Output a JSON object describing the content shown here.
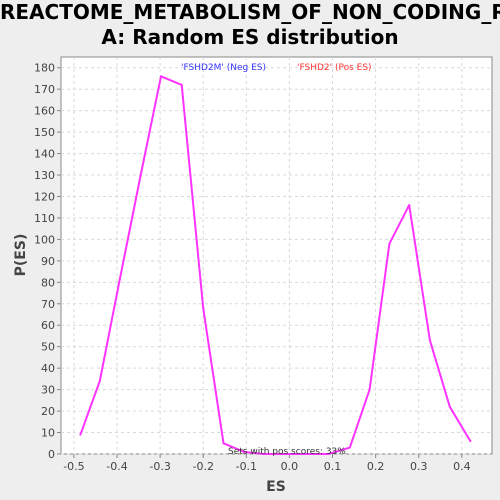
{
  "chart_data": {
    "type": "line",
    "title_lines": [
      "REACTOME_METABOLISM_OF_NON_CODING_RN",
      "A: Random ES distribution"
    ],
    "xlabel": "ES",
    "ylabel": "P(ES)",
    "xlim": [
      -0.53,
      0.47
    ],
    "ylim": [
      0,
      185
    ],
    "x_ticks": [
      -0.5,
      -0.4,
      -0.3,
      -0.2,
      -0.1,
      0.0,
      0.1,
      0.2,
      0.3,
      0.4
    ],
    "x_tick_labels": [
      "-0.5",
      "-0.4",
      "-0.3",
      "-0.2",
      "-0.1",
      "0.0",
      "0.1",
      "0.2",
      "0.3",
      "0.4"
    ],
    "y_ticks": [
      0,
      10,
      20,
      30,
      40,
      50,
      60,
      70,
      80,
      90,
      100,
      110,
      120,
      130,
      140,
      150,
      160,
      170,
      180
    ],
    "y_tick_labels": [
      "0",
      "10",
      "20",
      "30",
      "40",
      "50",
      "60",
      "70",
      "80",
      "90",
      "100",
      "110",
      "120",
      "130",
      "140",
      "150",
      "160",
      "170",
      "180"
    ],
    "grid": true,
    "series": [
      {
        "color": "#ff33ff",
        "x": [
          -0.485,
          -0.44,
          -0.395,
          -0.345,
          -0.298,
          -0.25,
          -0.2,
          -0.153,
          -0.105,
          -0.06,
          -0.01,
          0.04,
          0.09,
          0.14,
          0.186,
          0.232,
          0.278,
          0.326,
          0.372,
          0.42
        ],
        "y": [
          9,
          34,
          80,
          130,
          176,
          172,
          68,
          5,
          1,
          0,
          0,
          0,
          0,
          3,
          30,
          98,
          116,
          53,
          22,
          6
        ]
      }
    ],
    "legend": [
      {
        "text": "'FSHD2M' (Neg ES)",
        "color": "#3333ff"
      },
      {
        "text": "'FSHD2' (Pos ES)",
        "color": "#ff3333"
      }
    ],
    "annotation": "Sets with pos scores: 33%"
  }
}
